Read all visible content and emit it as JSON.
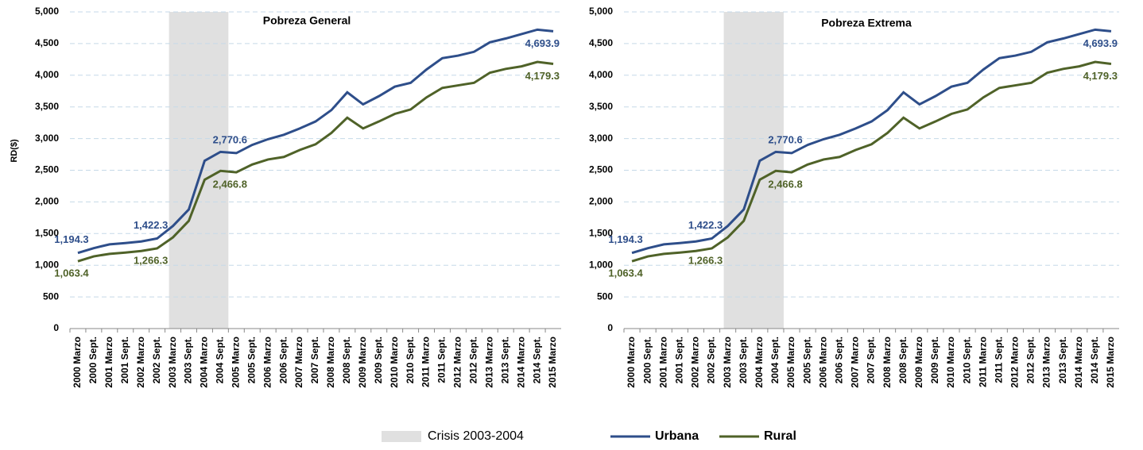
{
  "chart_data": [
    {
      "type": "line",
      "title": "Pobreza General",
      "y_label": "RD($)",
      "shaded_region": {
        "label": "Crisis 2003-2004",
        "from": "2003 Marzo",
        "to": "2004 Sept.",
        "color": "#e0e0e0"
      },
      "categories": [
        "2000 Marzo",
        "2000 Sept.",
        "2001 Marzo",
        "2001 Sept.",
        "2002 Marzo",
        "2002 Sept.",
        "2003 Marzo",
        "2003 Sept.",
        "2004 Marzo",
        "2004 Sept.",
        "2005 Marzo",
        "2005 Sept.",
        "2006 Marzo",
        "2006 Sept.",
        "2007 Marzo",
        "2007 Sept.",
        "2008 Marzo",
        "2008 Sept.",
        "2009 Marzo",
        "2009 Sept.",
        "2010 Marzo",
        "2010 Sept.",
        "2011 Marzo",
        "2011 Sept.",
        "2012 Marzo",
        "2012 Sept.",
        "2013 Marzo",
        "2013 Sept.",
        "2014 Marzo",
        "2014 Sept.",
        "2015 Marzo"
      ],
      "series": [
        {
          "name": "Urbana",
          "color": "#2e4e8a",
          "values": [
            1194.3,
            1270,
            1330,
            1350,
            1375,
            1422.3,
            1620,
            1880,
            2650,
            2790,
            2770.6,
            2900,
            2990,
            3060,
            3160,
            3270,
            3450,
            3730,
            3540,
            3670,
            3820,
            3880,
            4090,
            4270,
            4310,
            4370,
            4520,
            4580,
            4650,
            4720,
            4693.9
          ],
          "value_labels": [
            "1,194.3",
            null,
            null,
            null,
            null,
            "1,422.3",
            null,
            null,
            null,
            null,
            "2,770.6",
            null,
            null,
            null,
            null,
            null,
            null,
            null,
            null,
            null,
            null,
            null,
            null,
            null,
            null,
            null,
            null,
            null,
            null,
            null,
            "4,693.9"
          ]
        },
        {
          "name": "Rural",
          "color": "#4f6228",
          "values": [
            1063.4,
            1140,
            1180,
            1200,
            1225,
            1266.3,
            1440,
            1700,
            2350,
            2490,
            2466.8,
            2590,
            2670,
            2710,
            2820,
            2910,
            3090,
            3330,
            3160,
            3270,
            3390,
            3460,
            3650,
            3800,
            3840,
            3880,
            4040,
            4100,
            4140,
            4210,
            4179.3
          ],
          "value_labels": [
            "1,063.4",
            null,
            null,
            null,
            null,
            "1,266.3",
            null,
            null,
            null,
            null,
            "2,466.8",
            null,
            null,
            null,
            null,
            null,
            null,
            null,
            null,
            null,
            null,
            null,
            null,
            null,
            null,
            null,
            null,
            null,
            null,
            null,
            "4,179.3"
          ]
        }
      ],
      "ylim": [
        0,
        5000
      ],
      "yticks": [
        0,
        500,
        {
          "value": 1000,
          "label": "1,000"
        },
        {
          "value": 1500,
          "label": "1,500"
        },
        {
          "value": 2000,
          "label": "2,000"
        },
        {
          "value": 2500,
          "label": "2,500"
        },
        {
          "value": 3000,
          "label": "3,000"
        },
        {
          "value": 3500,
          "label": "3,500"
        },
        {
          "value": 4000,
          "label": "4,000"
        },
        {
          "value": 4500,
          "label": "4,500"
        },
        {
          "value": 5000,
          "label": "5,000"
        }
      ],
      "grid": true
    },
    {
      "type": "line",
      "title": "Pobreza  Extrema",
      "shaded_region": {
        "from": "2003 Marzo",
        "to": "2004 Sept.",
        "color": "#e0e0e0"
      },
      "categories": [
        "2000 Marzo",
        "2000 Sept.",
        "2001 Marzo",
        "2001 Sept.",
        "2002 Marzo",
        "2002 Sept.",
        "2003 Marzo",
        "2003 Sept.",
        "2004 Marzo",
        "2004 Sept.",
        "2005 Marzo",
        "2005 Sept.",
        "2006 Marzo",
        "2006 Sept.",
        "2007 Marzo",
        "2007 Sept.",
        "2008 Marzo",
        "2008 Sept.",
        "2009 Marzo",
        "2009 Sept.",
        "2010 Marzo",
        "2010 Sept.",
        "2011 Marzo",
        "2011 Sept.",
        "2012 Marzo",
        "2012 Sept.",
        "2013 Marzo",
        "2013 Sept.",
        "2014 Marzo",
        "2014 Sept.",
        "2015 Marzo"
      ],
      "series": [
        {
          "name": "Urbana",
          "color": "#2e4e8a",
          "values": [
            1194.3,
            1270,
            1330,
            1350,
            1375,
            1422.3,
            1620,
            1880,
            2650,
            2790,
            2770.6,
            2900,
            2990,
            3060,
            3160,
            3270,
            3450,
            3730,
            3540,
            3670,
            3820,
            3880,
            4090,
            4270,
            4310,
            4370,
            4520,
            4580,
            4650,
            4720,
            4693.9
          ],
          "value_labels": [
            "1,194.3",
            null,
            null,
            null,
            null,
            "1,422.3",
            null,
            null,
            null,
            null,
            "2,770.6",
            null,
            null,
            null,
            null,
            null,
            null,
            null,
            null,
            null,
            null,
            null,
            null,
            null,
            null,
            null,
            null,
            null,
            null,
            null,
            "4,693.9"
          ]
        },
        {
          "name": "Rural",
          "color": "#4f6228",
          "values": [
            1063.4,
            1140,
            1180,
            1200,
            1225,
            1266.3,
            1440,
            1700,
            2350,
            2490,
            2466.8,
            2590,
            2670,
            2710,
            2820,
            2910,
            3090,
            3330,
            3160,
            3270,
            3390,
            3460,
            3650,
            3800,
            3840,
            3880,
            4040,
            4100,
            4140,
            4210,
            4179.3
          ],
          "value_labels": [
            "1,063.4",
            null,
            null,
            null,
            null,
            "1,266.3",
            null,
            null,
            null,
            null,
            "2,466.8",
            null,
            null,
            null,
            null,
            null,
            null,
            null,
            null,
            null,
            null,
            null,
            null,
            null,
            null,
            null,
            null,
            null,
            null,
            null,
            "4,179.3"
          ]
        }
      ],
      "ylim": [
        0,
        5000
      ],
      "yticks": [
        0,
        500,
        {
          "value": 1000,
          "label": "1,000"
        },
        {
          "value": 1500,
          "label": "1,500"
        },
        {
          "value": 2000,
          "label": "2,000"
        },
        {
          "value": 2500,
          "label": "2,500"
        },
        {
          "value": 3000,
          "label": "3,000"
        },
        {
          "value": 3500,
          "label": "3,500"
        },
        {
          "value": 4000,
          "label": "4,000"
        },
        {
          "value": 4500,
          "label": "4,500"
        },
        {
          "value": 5000,
          "label": "5,000"
        }
      ],
      "grid": true
    }
  ]
}
